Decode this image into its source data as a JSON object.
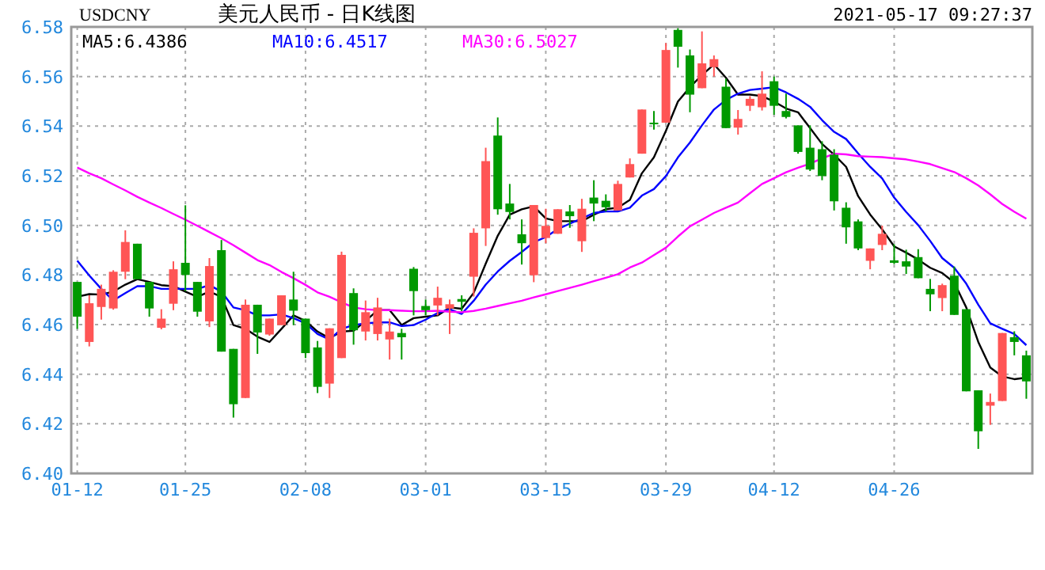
{
  "chart_data": {
    "type": "candlestick",
    "title": "美元人民币 - 日K线图",
    "annotations": [
      "USDCNY",
      "2021-05-17 09:27:37"
    ],
    "categories": [
      "01-12",
      null,
      null,
      null,
      null,
      null,
      null,
      null,
      null,
      "01-25",
      null,
      null,
      null,
      null,
      null,
      null,
      null,
      null,
      null,
      "02-08",
      null,
      null,
      null,
      null,
      null,
      null,
      null,
      null,
      null,
      "03-01",
      null,
      null,
      null,
      null,
      null,
      null,
      null,
      null,
      null,
      "03-15",
      null,
      null,
      null,
      null,
      null,
      null,
      null,
      null,
      null,
      "03-29",
      null,
      null,
      null,
      null,
      null,
      null,
      null,
      null,
      "04-12",
      null,
      null,
      null,
      null,
      null,
      null,
      null,
      null,
      null,
      "04-26",
      null,
      null,
      null,
      null,
      null,
      null,
      null,
      null,
      null,
      null,
      null
    ],
    "ohlc": [
      [
        6.4772,
        6.4772,
        6.4583,
        6.4632
      ],
      [
        6.453,
        6.4718,
        6.4512,
        6.4686
      ],
      [
        6.4671,
        6.4761,
        6.462,
        6.4744
      ],
      [
        6.4665,
        6.4819,
        6.466,
        6.4813
      ],
      [
        6.4813,
        6.498,
        6.4783,
        6.4933
      ],
      [
        6.4926,
        6.4926,
        6.4783,
        6.4783
      ],
      [
        6.4772,
        6.4772,
        6.4632,
        6.4665
      ],
      [
        6.4587,
        6.4662,
        6.4581,
        6.4624
      ],
      [
        6.4684,
        6.4855,
        6.4658,
        6.4823
      ],
      [
        6.4849,
        6.5081,
        6.4735,
        6.48
      ],
      [
        6.4772,
        6.4772,
        6.4632,
        6.4652
      ],
      [
        6.4613,
        6.4868,
        6.459,
        6.4836
      ],
      [
        6.49,
        6.4941,
        6.4491,
        6.4491
      ],
      [
        6.4502,
        6.4502,
        6.4225,
        6.4279
      ],
      [
        6.4304,
        6.4701,
        6.4304,
        6.468
      ],
      [
        6.468,
        6.468,
        6.4482,
        6.4568
      ],
      [
        6.456,
        6.4624,
        6.4555,
        6.4624
      ],
      [
        6.4598,
        6.4718,
        6.4598,
        6.4718
      ],
      [
        6.4701,
        6.4813,
        6.4598,
        6.4656
      ],
      [
        6.4624,
        6.4624,
        6.4465,
        6.4485
      ],
      [
        6.4508,
        6.4534,
        6.4324,
        6.4349
      ],
      [
        6.4362,
        6.4585,
        6.4304,
        6.4585
      ],
      [
        6.4465,
        6.4894,
        6.4465,
        6.4881
      ],
      [
        6.4727,
        6.4746,
        6.4519,
        6.4577
      ],
      [
        6.4572,
        6.4697,
        6.4536,
        6.465
      ],
      [
        6.4562,
        6.4708,
        6.4536,
        6.4669
      ],
      [
        6.454,
        6.4624,
        6.4459,
        6.4572
      ],
      [
        6.4566,
        6.4583,
        6.4459,
        6.4549
      ],
      [
        6.4825,
        6.4832,
        6.4637,
        6.4735
      ],
      [
        6.4675,
        6.4701,
        6.4637,
        6.4658
      ],
      [
        6.4677,
        6.4753,
        6.4637,
        6.4708
      ],
      [
        6.4665,
        6.4701,
        6.4562,
        6.4682
      ],
      [
        6.4703,
        6.4718,
        6.4654,
        6.4692
      ],
      [
        6.4793,
        6.4988,
        6.4713,
        6.497
      ],
      [
        6.4988,
        6.5313,
        6.4917,
        6.5259
      ],
      [
        6.5362,
        6.5435,
        6.5043,
        6.5065
      ],
      [
        6.5088,
        6.5167,
        6.5024,
        6.5054
      ],
      [
        6.4964,
        6.5024,
        6.4842,
        6.4928
      ],
      [
        6.4799,
        6.5082,
        6.4771,
        6.5082
      ],
      [
        6.4949,
        6.5067,
        6.4928,
        6.4998
      ],
      [
        6.4966,
        6.5065,
        6.4966,
        6.5065
      ],
      [
        6.5056,
        6.5082,
        6.499,
        6.5037
      ],
      [
        6.4936,
        6.5107,
        6.4893,
        6.5067
      ],
      [
        6.5112,
        6.5182,
        6.5017,
        6.5088
      ],
      [
        6.5099,
        6.5125,
        6.5056,
        6.5073
      ],
      [
        6.506,
        6.518,
        6.506,
        6.5167
      ],
      [
        6.5193,
        6.527,
        6.5193,
        6.5247
      ],
      [
        6.5289,
        6.5467,
        6.5289,
        6.5467
      ],
      [
        6.5414,
        6.5461,
        6.5386,
        6.5409
      ],
      [
        6.5414,
        6.5735,
        6.5414,
        6.5707
      ],
      [
        6.5788,
        6.5795,
        6.5636,
        6.572
      ],
      [
        6.5685,
        6.5709,
        6.5456,
        6.5527
      ],
      [
        6.5553,
        6.5782,
        6.5553,
        6.5653
      ],
      [
        6.5638,
        6.5685,
        6.56,
        6.567
      ],
      [
        6.5559,
        6.5591,
        6.5392,
        6.5392
      ],
      [
        6.5394,
        6.5465,
        6.5366,
        6.5429
      ],
      [
        6.5482,
        6.5521,
        6.5461,
        6.551
      ],
      [
        6.5476,
        6.5621,
        6.5463,
        6.5531
      ],
      [
        6.5581,
        6.56,
        6.5446,
        6.5482
      ],
      [
        6.5461,
        6.5531,
        6.5431,
        6.5437
      ],
      [
        6.5403,
        6.5403,
        6.5289,
        6.5296
      ],
      [
        6.5313,
        6.5403,
        6.5219,
        6.5225
      ],
      [
        6.5307,
        6.5339,
        6.5182,
        6.5199
      ],
      [
        6.5285,
        6.5307,
        6.506,
        6.5097
      ],
      [
        6.5071,
        6.5093,
        6.4926,
        6.4992
      ],
      [
        6.5016,
        6.5024,
        6.49,
        6.4907
      ],
      [
        6.4857,
        6.4907,
        6.4823,
        6.4907
      ],
      [
        6.4921,
        6.4999,
        6.49,
        6.4966
      ],
      [
        6.4859,
        6.4924,
        6.4844,
        6.4849
      ],
      [
        6.4855,
        6.4902,
        6.4804,
        6.4834
      ],
      [
        6.4872,
        6.4904,
        6.4787,
        6.4787
      ],
      [
        6.4744,
        6.4784,
        6.4654,
        6.4722
      ],
      [
        6.4707,
        6.4765,
        6.4654,
        6.4759
      ],
      [
        6.4797,
        6.4834,
        6.4639,
        6.4639
      ],
      [
        6.4662,
        6.4662,
        6.4331,
        6.4331
      ],
      [
        6.4335,
        6.4335,
        6.4099,
        6.417
      ],
      [
        6.4273,
        6.4322,
        6.4196,
        6.4288
      ],
      [
        6.4292,
        6.4566,
        6.4292,
        6.4566
      ],
      [
        6.4549,
        6.4573,
        6.4476,
        6.453
      ],
      [
        6.4476,
        6.4495,
        6.4301,
        6.4371
      ]
    ],
    "series": [
      {
        "name": "MA5:6.4386",
        "type": "line",
        "color": "#000000",
        "values": [
          6.4712,
          6.4723,
          6.4721,
          6.4733,
          6.4761,
          6.4783,
          6.4772,
          6.4759,
          6.4755,
          6.4733,
          6.4712,
          6.4733,
          6.4712,
          6.4598,
          6.4583,
          6.4551,
          6.453,
          6.4583,
          6.4637,
          6.4615,
          6.4572,
          6.4545,
          6.4572,
          6.4575,
          6.4615,
          6.4658,
          6.4658,
          6.4598,
          6.4626,
          6.4632,
          6.4637,
          6.4669,
          6.4664,
          6.4728,
          6.4846,
          6.4958,
          6.5043,
          6.5065,
          6.5077,
          6.5028,
          6.5017,
          6.5017,
          6.5017,
          6.5043,
          6.5065,
          6.5071,
          6.5103,
          6.521,
          6.5274,
          6.5381,
          6.5499,
          6.5557,
          6.5606,
          6.5649,
          6.5595,
          6.5527,
          6.5527,
          6.5521,
          6.5499,
          6.5471,
          6.5456,
          6.5392,
          6.5328,
          6.5285,
          6.5236,
          6.5118,
          6.5044,
          6.4984,
          6.4915,
          6.489,
          6.4862,
          6.4829,
          6.4808,
          6.4769,
          6.4669,
          6.453,
          6.4427,
          6.4391,
          6.438,
          6.4386
        ]
      },
      {
        "name": "MA10:6.4517",
        "type": "line",
        "color": "#0000ff",
        "values": [
          6.4858,
          6.4798,
          6.4744,
          6.4697,
          6.4727,
          6.4755,
          6.4755,
          6.4744,
          6.4744,
          6.4744,
          6.4744,
          6.4759,
          6.4733,
          6.4669,
          6.4658,
          6.4637,
          6.4637,
          6.4641,
          6.4626,
          6.4605,
          6.4562,
          6.454,
          6.4583,
          6.4598,
          6.4605,
          6.4609,
          6.4609,
          6.4594,
          6.4598,
          6.462,
          6.4647,
          6.4662,
          6.4643,
          6.4696,
          6.4761,
          6.4814,
          6.4857,
          6.4893,
          6.4932,
          6.4953,
          6.4985,
          6.5007,
          6.5028,
          6.505,
          6.5056,
          6.5056,
          6.5071,
          6.512,
          6.5146,
          6.5199,
          6.5274,
          6.5334,
          6.5403,
          6.5467,
          6.5506,
          6.5531,
          6.5546,
          6.5551,
          6.5557,
          6.5536,
          6.551,
          6.5478,
          6.5424,
          6.5377,
          6.5348,
          6.529,
          6.5236,
          6.5189,
          6.5112,
          6.5054,
          6.5001,
          6.4937,
          6.4868,
          6.4829,
          6.4765,
          6.468,
          6.4605,
          6.4583,
          6.4562,
          6.4517
        ]
      },
      {
        "name": "MA30:6.5027",
        "type": "line",
        "color": "#ff00ff",
        "values": [
          6.5233,
          6.521,
          6.519,
          6.5165,
          6.5141,
          6.5115,
          6.5092,
          6.507,
          6.5046,
          6.5023,
          6.4998,
          6.4973,
          6.4948,
          6.492,
          6.489,
          6.486,
          6.484,
          6.4812,
          6.4787,
          6.476,
          6.473,
          6.4712,
          6.469,
          6.4669,
          6.4662,
          6.4658,
          6.4658,
          6.4656,
          6.4654,
          6.4654,
          6.4656,
          6.4652,
          6.465,
          6.4655,
          6.4664,
          6.4675,
          6.4686,
          6.4696,
          6.471,
          6.4722,
          6.4735,
          6.4748,
          6.4761,
          6.4775,
          6.4789,
          6.4803,
          6.483,
          6.485,
          6.488,
          6.491,
          6.4955,
          6.4996,
          6.5023,
          6.505,
          6.5071,
          6.5092,
          6.513,
          6.5167,
          6.519,
          6.5214,
          6.5232,
          6.5249,
          6.527,
          6.5289,
          6.5286,
          6.5279,
          6.5277,
          6.5275,
          6.527,
          6.5266,
          6.5257,
          6.5247,
          6.5231,
          6.5215,
          6.519,
          6.5161,
          6.5125,
          6.5086,
          6.5055,
          6.5027
        ]
      }
    ],
    "ylim": [
      6.4,
      6.58
    ],
    "yticks": [
      {
        "value": 6.4,
        "label": "6.40"
      },
      6.42,
      6.44,
      6.46,
      6.48,
      {
        "value": 6.5,
        "label": "6.50"
      },
      6.52,
      6.54,
      6.56,
      6.58
    ],
    "grid": true,
    "legend": "top left"
  }
}
